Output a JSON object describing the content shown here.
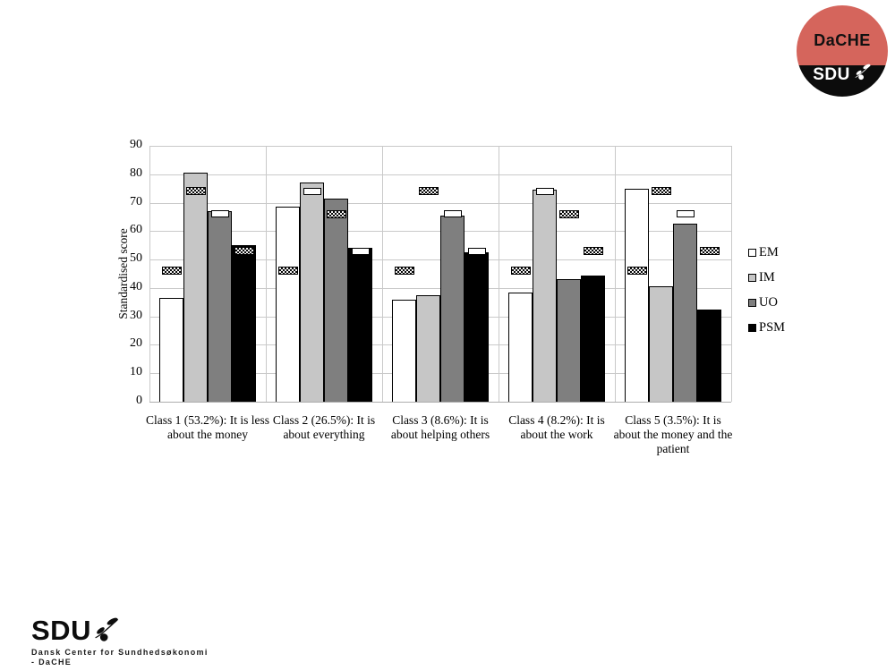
{
  "badge": {
    "top_label": "DaCHE",
    "bottom_label": "SDU",
    "red": "#d5655c",
    "black": "#0c0c0c"
  },
  "footer": {
    "brand": "SDU",
    "dept_line1": "Dansk Center for Sundhedsøkonomi",
    "dept_line2": "- DaCHE"
  },
  "chart_data": {
    "type": "bar",
    "title": "",
    "ylabel": "Standardised score",
    "xlabel": "",
    "ylim": [
      0,
      90
    ],
    "yticks": [
      0,
      10,
      20,
      30,
      40,
      50,
      60,
      70,
      80,
      90
    ],
    "grid": true,
    "legend_position": "right",
    "categories": [
      "Class 1 (53.2%): It is less about the money",
      "Class 2 (26.5%): It is about everything",
      "Class 3 (8.6%): It is about helping others",
      "Class 4 (8.2%): It is about the work",
      "Class 5 (3.5%): It is about the money and the patient"
    ],
    "series": [
      {
        "name": "EM",
        "color": "#ffffff",
        "values": [
          36.5,
          68.5,
          36,
          38.5,
          75
        ],
        "mean_marker": 46,
        "marker_styles": [
          "hatched",
          "hatched",
          "hatched",
          "hatched",
          "hatched"
        ]
      },
      {
        "name": "IM",
        "color": "#c6c6c6",
        "values": [
          80.5,
          77,
          37.5,
          74.5,
          40.5
        ],
        "mean_marker": 74,
        "marker_styles": [
          "hatched",
          "white",
          "hatched",
          "white",
          "hatched"
        ]
      },
      {
        "name": "UO",
        "color": "#7f7f7f",
        "values": [
          67,
          71.5,
          65.5,
          43,
          62.5
        ],
        "mean_marker": 66,
        "marker_styles": [
          "white",
          "hatched",
          "white",
          "hatched",
          "white"
        ]
      },
      {
        "name": "PSM",
        "color": "#000000",
        "values": [
          55,
          54,
          52.5,
          44.5,
          32.5
        ],
        "mean_marker": 53,
        "marker_styles": [
          "hatched",
          "white",
          "white",
          "hatched",
          "hatched"
        ]
      }
    ]
  }
}
